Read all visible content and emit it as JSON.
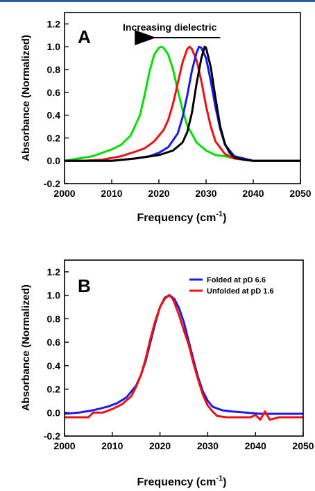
{
  "chart_data": [
    {
      "type": "line",
      "panel": "A",
      "xlabel": "Frequency (cm",
      "xlabel_sup": "-1",
      "xlabel_close": ")",
      "ylabel": "Absorbance (Normalized)",
      "xlim": [
        2000,
        2050
      ],
      "ylim": [
        -0.2,
        1.3
      ],
      "xticks": [
        "2000",
        "2010",
        "2020",
        "2030",
        "2040",
        "2050"
      ],
      "yticks": [
        "-0.2",
        "0.0",
        "0.2",
        "0.4",
        "0.6",
        "0.8",
        "1.0",
        "1.2"
      ],
      "annotation": "Increasing dielectric",
      "arrow": {
        "from_x": 2033,
        "to_x": 2017,
        "y": 1.08
      },
      "series": [
        {
          "color": "#00e000",
          "x": [
            2000,
            2003,
            2006,
            2008,
            2010,
            2012,
            2014,
            2016,
            2017,
            2018,
            2019,
            2020,
            2020.5,
            2021,
            2022,
            2023,
            2024,
            2025,
            2026,
            2028,
            2030,
            2032,
            2034,
            2036,
            2038,
            2040,
            2045,
            2050
          ],
          "y": [
            0.0,
            0.02,
            0.04,
            0.07,
            0.1,
            0.14,
            0.22,
            0.4,
            0.58,
            0.78,
            0.93,
            0.99,
            1.0,
            0.99,
            0.93,
            0.8,
            0.62,
            0.45,
            0.31,
            0.16,
            0.09,
            0.05,
            0.04,
            0.02,
            0.01,
            0.0,
            0.0,
            0.0
          ]
        },
        {
          "color": "#ee1111",
          "x": [
            2000,
            2004,
            2008,
            2012,
            2015,
            2017,
            2019,
            2021,
            2022,
            2023,
            2024,
            2025,
            2026,
            2026.5,
            2027,
            2028,
            2029,
            2030,
            2031,
            2032,
            2034,
            2036,
            2040,
            2045,
            2050
          ],
          "y": [
            0.0,
            0.0,
            0.01,
            0.04,
            0.08,
            0.11,
            0.17,
            0.27,
            0.36,
            0.5,
            0.68,
            0.86,
            0.98,
            1.0,
            0.98,
            0.88,
            0.7,
            0.48,
            0.3,
            0.17,
            0.06,
            0.02,
            0.0,
            0.0,
            0.0
          ]
        },
        {
          "color": "#1a1aee",
          "x": [
            2000,
            2005,
            2010,
            2015,
            2018,
            2020,
            2022,
            2024,
            2025,
            2026,
            2027,
            2028,
            2028.5,
            2029,
            2030,
            2031,
            2032,
            2033,
            2034,
            2036,
            2040,
            2045,
            2050
          ],
          "y": [
            0.0,
            0.0,
            0.0,
            0.02,
            0.04,
            0.07,
            0.12,
            0.24,
            0.38,
            0.57,
            0.79,
            0.95,
            1.0,
            0.99,
            0.9,
            0.7,
            0.47,
            0.28,
            0.14,
            0.04,
            0.0,
            0.0,
            0.0
          ]
        },
        {
          "color": "#000000",
          "x": [
            2000,
            2005,
            2010,
            2015,
            2020,
            2023,
            2025,
            2026,
            2027,
            2028,
            2029,
            2029.7,
            2030,
            2031,
            2032,
            2033,
            2034,
            2035,
            2036,
            2038,
            2040,
            2045,
            2050
          ],
          "y": [
            0.0,
            0.0,
            0.0,
            0.02,
            0.05,
            0.09,
            0.16,
            0.25,
            0.42,
            0.68,
            0.9,
            1.0,
            0.99,
            0.82,
            0.55,
            0.3,
            0.15,
            0.07,
            0.03,
            0.01,
            0.0,
            0.0,
            0.0
          ]
        }
      ]
    },
    {
      "type": "line",
      "panel": "B",
      "xlabel": "Frequency (cm",
      "xlabel_sup": "-1",
      "xlabel_close": ")",
      "ylabel": "Absorbance (Normalized)",
      "xlim": [
        2000,
        2050
      ],
      "ylim": [
        -0.2,
        1.3
      ],
      "xticks": [
        "2000",
        "2010",
        "2020",
        "2030",
        "2040",
        "2050"
      ],
      "yticks": [
        "-0.2",
        "0.0",
        "0.2",
        "0.4",
        "0.6",
        "0.8",
        "1.0",
        "1.2"
      ],
      "legend_position": "top-right",
      "series": [
        {
          "name": "Folded at pD 6.6",
          "color": "#1a1aee",
          "x": [
            2000,
            2003,
            2006,
            2009,
            2011,
            2013,
            2015,
            2016,
            2017,
            2018,
            2019,
            2020,
            2021,
            2022,
            2023,
            2024,
            2025,
            2026,
            2027,
            2028,
            2029,
            2030,
            2031,
            2033,
            2035,
            2038,
            2041,
            2044,
            2047,
            2050
          ],
          "y": [
            -0.01,
            0.0,
            0.02,
            0.05,
            0.08,
            0.13,
            0.23,
            0.32,
            0.44,
            0.6,
            0.76,
            0.9,
            0.98,
            1.0,
            0.97,
            0.89,
            0.77,
            0.61,
            0.45,
            0.3,
            0.18,
            0.1,
            0.05,
            0.02,
            0.01,
            0.0,
            -0.01,
            -0.01,
            -0.01,
            -0.01
          ]
        },
        {
          "name": "Unfolded at pD 1.6",
          "color": "#ee1111",
          "x": [
            2000,
            2003,
            2005,
            2006,
            2008,
            2010,
            2012,
            2014,
            2015,
            2016,
            2017,
            2018,
            2019,
            2020,
            2021,
            2021.8,
            2022.5,
            2023,
            2024,
            2025,
            2026,
            2027,
            2028,
            2029,
            2030,
            2031,
            2032,
            2034,
            2036,
            2039,
            2040,
            2041,
            2042,
            2043,
            2045,
            2047,
            2050
          ],
          "y": [
            -0.04,
            -0.04,
            -0.04,
            0.0,
            0.0,
            0.03,
            0.07,
            0.14,
            0.22,
            0.32,
            0.46,
            0.63,
            0.78,
            0.9,
            0.97,
            1.0,
            0.98,
            0.94,
            0.83,
            0.7,
            0.58,
            0.42,
            0.28,
            0.15,
            0.06,
            0.01,
            -0.03,
            -0.04,
            -0.04,
            -0.04,
            -0.02,
            -0.06,
            0.01,
            -0.06,
            -0.04,
            -0.04,
            -0.04
          ]
        }
      ]
    }
  ]
}
